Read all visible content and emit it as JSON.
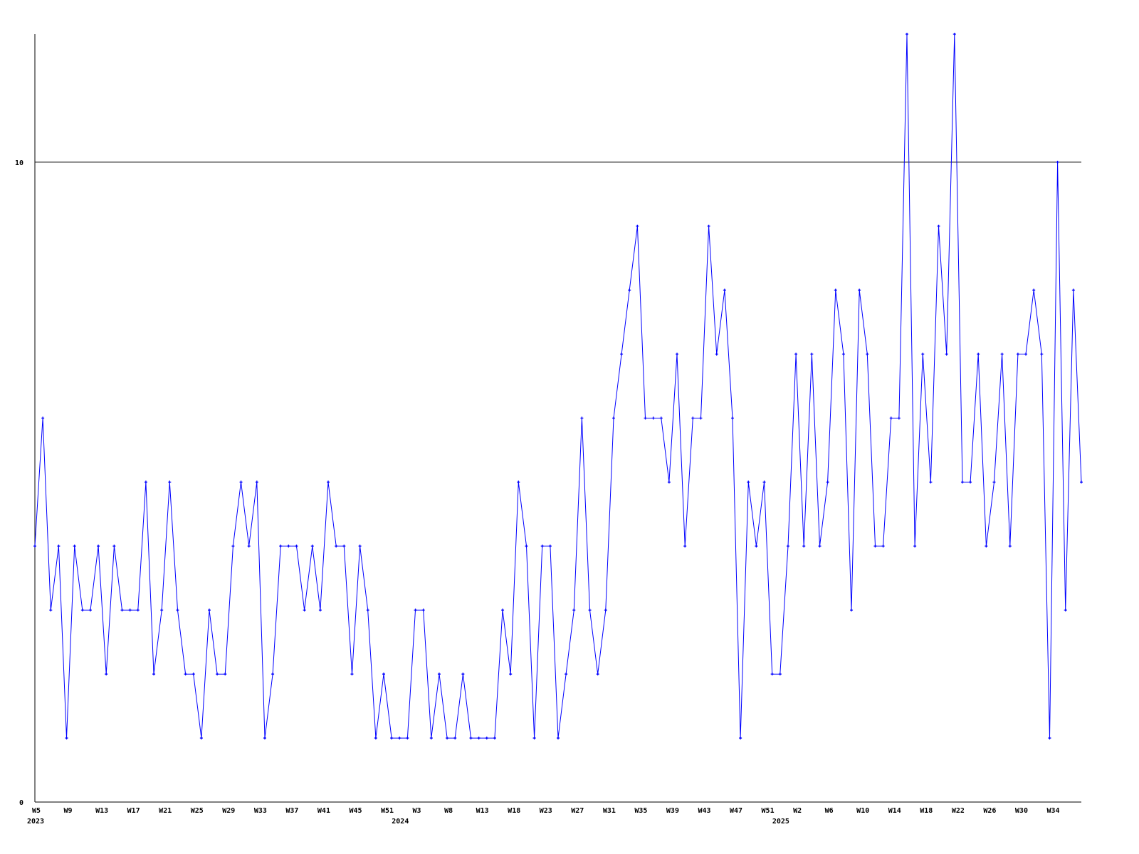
{
  "chart_data": {
    "type": "line",
    "title": "",
    "xlabel": "",
    "ylabel": "",
    "ylim": [
      0,
      12
    ],
    "yticks": [
      0,
      10
    ],
    "grid": {
      "horizontal_at": [
        10
      ]
    },
    "legend": "none",
    "colors": {
      "series": "#0000ff",
      "axis": "#000000",
      "grid": "#000000"
    },
    "x_tick_labels": [
      {
        "index": 0,
        "label": "W5"
      },
      {
        "index": 4,
        "label": "W9"
      },
      {
        "index": 8,
        "label": "W13"
      },
      {
        "index": 12,
        "label": "W17"
      },
      {
        "index": 16,
        "label": "W21"
      },
      {
        "index": 20,
        "label": "W25"
      },
      {
        "index": 24,
        "label": "W29"
      },
      {
        "index": 28,
        "label": "W33"
      },
      {
        "index": 32,
        "label": "W37"
      },
      {
        "index": 36,
        "label": "W41"
      },
      {
        "index": 40,
        "label": "W45"
      },
      {
        "index": 44,
        "label": "W51"
      },
      {
        "index": 48,
        "label": "W3"
      },
      {
        "index": 52,
        "label": "W8"
      },
      {
        "index": 56,
        "label": "W13"
      },
      {
        "index": 60,
        "label": "W18"
      },
      {
        "index": 64,
        "label": "W23"
      },
      {
        "index": 68,
        "label": "W27"
      },
      {
        "index": 72,
        "label": "W31"
      },
      {
        "index": 76,
        "label": "W35"
      },
      {
        "index": 80,
        "label": "W39"
      },
      {
        "index": 84,
        "label": "W43"
      },
      {
        "index": 88,
        "label": "W47"
      },
      {
        "index": 92,
        "label": "W51"
      },
      {
        "index": 96,
        "label": "W2"
      },
      {
        "index": 100,
        "label": "W6"
      },
      {
        "index": 104,
        "label": "W10"
      },
      {
        "index": 108,
        "label": "W14"
      },
      {
        "index": 112,
        "label": "W18"
      },
      {
        "index": 116,
        "label": "W22"
      },
      {
        "index": 120,
        "label": "W26"
      },
      {
        "index": 124,
        "label": "W30"
      },
      {
        "index": 128,
        "label": "W34"
      }
    ],
    "year_labels": [
      {
        "index": 0,
        "label": "2023"
      },
      {
        "index": 46,
        "label": "2024"
      },
      {
        "index": 94,
        "label": "2025"
      }
    ],
    "series": [
      {
        "values": [
          4,
          6,
          3,
          4,
          1,
          4,
          3,
          3,
          4,
          2,
          4,
          3,
          3,
          3,
          5,
          2,
          3,
          5,
          3,
          2,
          2,
          1,
          3,
          2,
          2,
          4,
          5,
          4,
          5,
          1,
          2,
          4,
          4,
          4,
          3,
          4,
          3,
          5,
          4,
          4,
          2,
          4,
          3,
          1,
          2,
          1,
          1,
          1,
          3,
          3,
          1,
          2,
          1,
          1,
          2,
          1,
          1,
          1,
          1,
          3,
          2,
          5,
          4,
          1,
          4,
          4,
          1,
          2,
          3,
          6,
          3,
          2,
          3,
          6,
          7,
          8,
          9,
          6,
          6,
          6,
          5,
          7,
          4,
          6,
          6,
          9,
          7,
          8,
          6,
          1,
          5,
          4,
          5,
          2,
          2,
          4,
          7,
          4,
          7,
          4,
          5,
          8,
          7,
          3,
          8,
          7,
          4,
          4,
          6,
          6,
          12,
          4,
          7,
          5,
          9,
          7,
          12,
          5,
          5,
          7,
          4,
          5,
          7,
          4,
          7,
          7,
          8,
          7,
          1,
          10,
          3,
          8,
          5
        ]
      }
    ]
  }
}
